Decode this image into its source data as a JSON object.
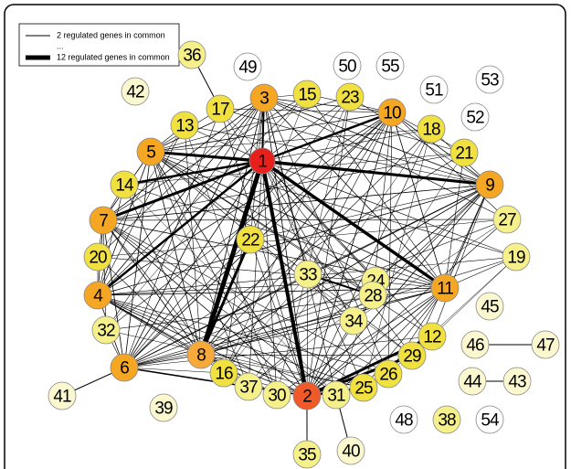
{
  "legend": {
    "items": [
      "2 regulated genes in common",
      "...",
      "12 regulated genes in common"
    ]
  },
  "nodes": [
    {
      "label": "1"
    },
    {
      "label": "2"
    },
    {
      "label": "3"
    },
    {
      "label": "4"
    },
    {
      "label": "5"
    },
    {
      "label": "6"
    },
    {
      "label": "7"
    },
    {
      "label": "8"
    },
    {
      "label": "9"
    },
    {
      "label": "10"
    },
    {
      "label": "11"
    },
    {
      "label": "12"
    },
    {
      "label": "13"
    },
    {
      "label": "14"
    },
    {
      "label": "15"
    },
    {
      "label": "16"
    },
    {
      "label": "17"
    },
    {
      "label": "18"
    },
    {
      "label": "19"
    },
    {
      "label": "20"
    },
    {
      "label": "21"
    },
    {
      "label": "22"
    },
    {
      "label": "23"
    },
    {
      "label": "24"
    },
    {
      "label": "25"
    },
    {
      "label": "26"
    },
    {
      "label": "27"
    },
    {
      "label": "28"
    },
    {
      "label": "29"
    },
    {
      "label": "30"
    },
    {
      "label": "31"
    },
    {
      "label": "32"
    },
    {
      "label": "33"
    },
    {
      "label": "34"
    },
    {
      "label": "35"
    },
    {
      "label": "36"
    },
    {
      "label": "37"
    },
    {
      "label": "38"
    },
    {
      "label": "39"
    },
    {
      "label": "40"
    },
    {
      "label": "41"
    },
    {
      "label": "42"
    },
    {
      "label": "43"
    },
    {
      "label": "44"
    },
    {
      "label": "45"
    },
    {
      "label": "46"
    },
    {
      "label": "47"
    },
    {
      "label": "48"
    },
    {
      "label": "49"
    },
    {
      "label": "50"
    },
    {
      "label": "51"
    },
    {
      "label": "52"
    },
    {
      "label": "53"
    },
    {
      "label": "54"
    },
    {
      "label": "55"
    }
  ]
}
